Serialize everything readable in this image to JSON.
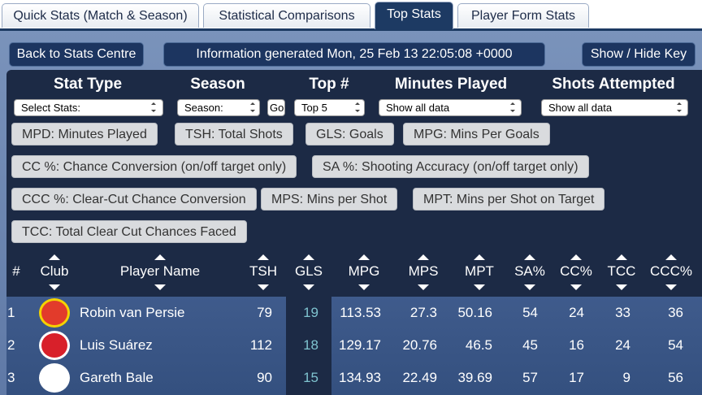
{
  "tabs": [
    "Quick Stats (Match & Season)",
    "Statistical Comparisons",
    "Top Stats",
    "Player Form Stats"
  ],
  "toolbar": {
    "back": "Back to Stats Centre",
    "info": "Information generated Mon, 25 Feb 13 22:05:08 +0000",
    "key": "Show / Hide Key"
  },
  "filters": {
    "labels": [
      "Stat Type",
      "Season",
      "Top #",
      "Minutes Played",
      "Shots Attempted"
    ],
    "selects": [
      "Select Stats:",
      "Season:",
      "Top 5",
      "Show all data",
      "Show all data"
    ],
    "go": "Go"
  },
  "key": [
    "MPD: Minutes Played",
    "TSH: Total Shots",
    "GLS: Goals",
    "MPG: Mins Per Goals",
    "CC %: Chance Conversion (on/off target only)",
    "SA %: Shooting Accuracy (on/off target only)",
    "CCC %: Clear-Cut Chance Conversion",
    "MPS: Mins per Shot",
    "MPT: Mins per Shot on Target",
    "TCC: Total Clear Cut Chances Faced"
  ],
  "table": {
    "columns": [
      "#",
      "Club",
      "Player Name",
      "TSH",
      "GLS",
      "MPG",
      "MPS",
      "MPT",
      "SA%",
      "CC%",
      "TCC",
      "CCC%"
    ],
    "rows": [
      {
        "rank": "1",
        "player": "Robin van Persie",
        "stats": [
          "79",
          "19",
          "113.53",
          "27.3",
          "50.16",
          "54",
          "24",
          "33",
          "36"
        ]
      },
      {
        "rank": "2",
        "player": "Luis Suárez",
        "stats": [
          "112",
          "18",
          "129.17",
          "20.76",
          "46.5",
          "45",
          "16",
          "24",
          "54"
        ]
      },
      {
        "rank": "3",
        "player": "Gareth Bale",
        "stats": [
          "90",
          "15",
          "134.93",
          "22.49",
          "39.69",
          "57",
          "17",
          "9",
          "56"
        ]
      }
    ]
  }
}
